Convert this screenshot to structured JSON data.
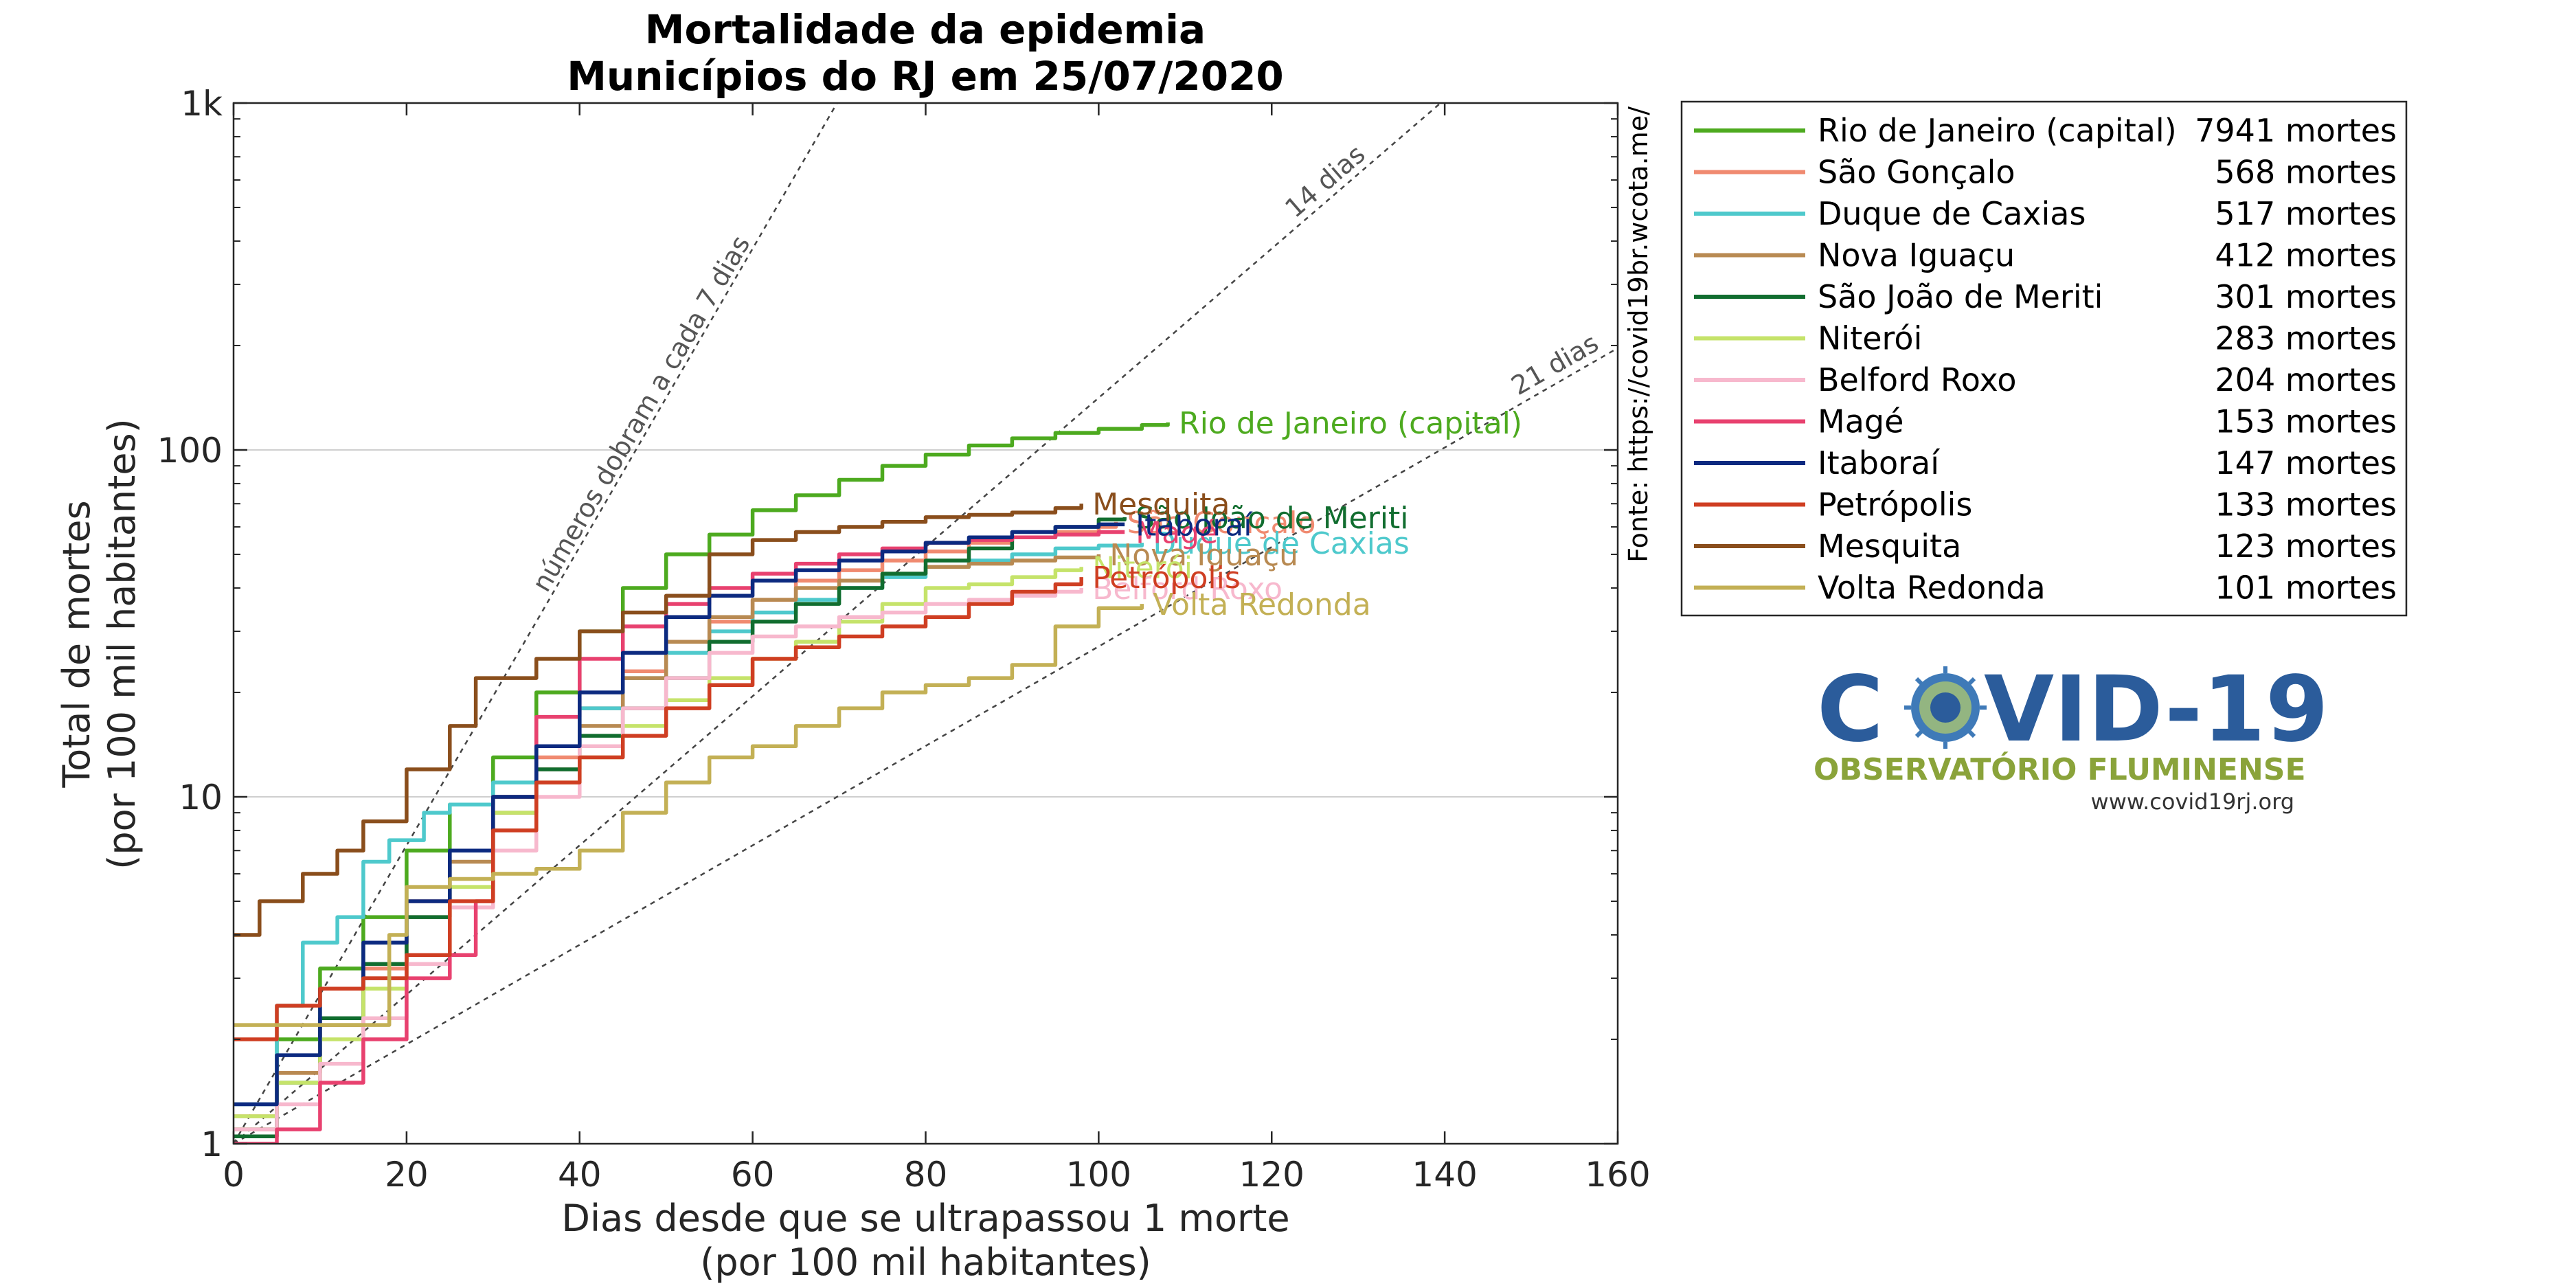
{
  "chart_data": {
    "type": "line",
    "title": [
      "Mortalidade da epidemia",
      "Municípios do RJ em 25/07/2020"
    ],
    "xlabel": [
      "Dias desde que se ultrapassou 1 morte",
      "(por 100 mil habitantes)"
    ],
    "ylabel": [
      "Total de mortes",
      "(por 100 mil habitantes)"
    ],
    "xlim": [
      0,
      160
    ],
    "ylim": [
      1,
      1000
    ],
    "yscale": "log",
    "xticks": [
      0,
      20,
      40,
      60,
      80,
      100,
      120,
      140,
      160
    ],
    "xtick_labels": [
      "0",
      "20",
      "40",
      "60",
      "80",
      "100",
      "120",
      "140",
      "160"
    ],
    "yticks": [
      1,
      10,
      100,
      1000
    ],
    "ytick_labels": [
      "1",
      "10",
      "100",
      "1k"
    ],
    "grid": "horizontal major lines",
    "legend_position": "outside-right-top",
    "source": "Fonte: https://covid19br.wcota.me/",
    "guides": [
      {
        "label": "números dobram a cada 7 dias",
        "doubling_days": 7
      },
      {
        "label": "14 dias",
        "doubling_days": 14
      },
      {
        "label": "21 dias",
        "doubling_days": 21
      }
    ],
    "series": [
      {
        "name": "Rio de Janeiro (capital)",
        "deaths": "7941 mortes",
        "color": "#4daa1f",
        "points": [
          [
            0,
            1.1
          ],
          [
            5,
            2
          ],
          [
            10,
            3.2
          ],
          [
            15,
            4.5
          ],
          [
            20,
            7
          ],
          [
            25,
            9.5
          ],
          [
            30,
            13
          ],
          [
            35,
            20
          ],
          [
            40,
            30
          ],
          [
            45,
            40
          ],
          [
            50,
            50
          ],
          [
            55,
            57
          ],
          [
            60,
            67
          ],
          [
            65,
            74
          ],
          [
            70,
            82
          ],
          [
            75,
            90
          ],
          [
            80,
            97
          ],
          [
            85,
            103
          ],
          [
            90,
            108
          ],
          [
            95,
            112
          ],
          [
            100,
            115
          ],
          [
            105,
            118
          ],
          [
            108,
            120
          ]
        ]
      },
      {
        "name": "São Gonçalo",
        "deaths": "568 mortes",
        "color": "#f08a70",
        "points": [
          [
            0,
            1.2
          ],
          [
            5,
            1.6
          ],
          [
            10,
            2.3
          ],
          [
            15,
            3.2
          ],
          [
            20,
            5
          ],
          [
            25,
            7
          ],
          [
            30,
            9
          ],
          [
            35,
            13
          ],
          [
            40,
            18
          ],
          [
            45,
            23
          ],
          [
            50,
            28
          ],
          [
            55,
            32
          ],
          [
            60,
            37
          ],
          [
            65,
            42
          ],
          [
            70,
            45
          ],
          [
            75,
            48
          ],
          [
            80,
            51
          ],
          [
            85,
            54
          ],
          [
            90,
            56
          ],
          [
            95,
            58
          ],
          [
            100,
            60
          ],
          [
            102,
            62
          ]
        ]
      },
      {
        "name": "Duque de Caxias",
        "deaths": "517 mortes",
        "color": "#4ec9cc",
        "points": [
          [
            0,
            1.3
          ],
          [
            5,
            2.5
          ],
          [
            8,
            3.8
          ],
          [
            12,
            4.5
          ],
          [
            15,
            6.5
          ],
          [
            18,
            7.5
          ],
          [
            22,
            9
          ],
          [
            25,
            9.5
          ],
          [
            30,
            11
          ],
          [
            35,
            14
          ],
          [
            40,
            18
          ],
          [
            45,
            22
          ],
          [
            50,
            26
          ],
          [
            55,
            30
          ],
          [
            60,
            34
          ],
          [
            65,
            37
          ],
          [
            70,
            40
          ],
          [
            75,
            43
          ],
          [
            80,
            46
          ],
          [
            85,
            48
          ],
          [
            90,
            50
          ],
          [
            95,
            52
          ],
          [
            100,
            53
          ],
          [
            105,
            54
          ]
        ]
      },
      {
        "name": "Nova Iguaçu",
        "deaths": "412 mortes",
        "color": "#b88a52",
        "points": [
          [
            0,
            1.1
          ],
          [
            5,
            1.6
          ],
          [
            10,
            2.2
          ],
          [
            15,
            3
          ],
          [
            20,
            4.5
          ],
          [
            25,
            6.5
          ],
          [
            30,
            9
          ],
          [
            35,
            12
          ],
          [
            40,
            16
          ],
          [
            45,
            22
          ],
          [
            50,
            28
          ],
          [
            55,
            33
          ],
          [
            60,
            37
          ],
          [
            65,
            40
          ],
          [
            70,
            42
          ],
          [
            75,
            44
          ],
          [
            80,
            46
          ],
          [
            85,
            47
          ],
          [
            90,
            48
          ],
          [
            95,
            49
          ],
          [
            100,
            50
          ]
        ]
      },
      {
        "name": "São João de Meriti",
        "deaths": "301 mortes",
        "color": "#116d2f",
        "points": [
          [
            0,
            1.05
          ],
          [
            5,
            1.5
          ],
          [
            10,
            2.3
          ],
          [
            15,
            3.3
          ],
          [
            20,
            4.5
          ],
          [
            25,
            7
          ],
          [
            30,
            10
          ],
          [
            35,
            12
          ],
          [
            40,
            15
          ],
          [
            45,
            18
          ],
          [
            50,
            22
          ],
          [
            55,
            28
          ],
          [
            60,
            32
          ],
          [
            65,
            36
          ],
          [
            70,
            40
          ],
          [
            75,
            44
          ],
          [
            80,
            48
          ],
          [
            85,
            52
          ],
          [
            90,
            56
          ],
          [
            95,
            60
          ],
          [
            100,
            63
          ],
          [
            103,
            64
          ]
        ]
      },
      {
        "name": "Niterói",
        "deaths": "283 mortes",
        "color": "#c5e36a",
        "points": [
          [
            0,
            1.2
          ],
          [
            5,
            1.5
          ],
          [
            10,
            2
          ],
          [
            15,
            2.8
          ],
          [
            20,
            3.5
          ],
          [
            25,
            5.5
          ],
          [
            30,
            9
          ],
          [
            35,
            11
          ],
          [
            40,
            13
          ],
          [
            45,
            16
          ],
          [
            50,
            19
          ],
          [
            55,
            22
          ],
          [
            60,
            25
          ],
          [
            65,
            28
          ],
          [
            70,
            32
          ],
          [
            75,
            36
          ],
          [
            80,
            40
          ],
          [
            85,
            41
          ],
          [
            90,
            43
          ],
          [
            95,
            45
          ],
          [
            98,
            46
          ]
        ]
      },
      {
        "name": "Belford Roxo",
        "deaths": "204 mortes",
        "color": "#f7b8cd",
        "points": [
          [
            0,
            1.1
          ],
          [
            5,
            1.3
          ],
          [
            10,
            1.7
          ],
          [
            15,
            2.3
          ],
          [
            20,
            3.3
          ],
          [
            25,
            4.8
          ],
          [
            30,
            7
          ],
          [
            35,
            10
          ],
          [
            40,
            14
          ],
          [
            45,
            18
          ],
          [
            50,
            22
          ],
          [
            55,
            26
          ],
          [
            60,
            29
          ],
          [
            65,
            31
          ],
          [
            70,
            33
          ],
          [
            75,
            34
          ],
          [
            80,
            36
          ],
          [
            85,
            37
          ],
          [
            90,
            38
          ],
          [
            95,
            39
          ],
          [
            98,
            40
          ]
        ]
      },
      {
        "name": "Magé",
        "deaths": "153 mortes",
        "color": "#e8416f",
        "points": [
          [
            0,
            1
          ],
          [
            3,
            1
          ],
          [
            5,
            1.1
          ],
          [
            10,
            1.5
          ],
          [
            15,
            2
          ],
          [
            20,
            3
          ],
          [
            25,
            3.5
          ],
          [
            28,
            5
          ],
          [
            30,
            10
          ],
          [
            35,
            17
          ],
          [
            40,
            25
          ],
          [
            45,
            31
          ],
          [
            50,
            36
          ],
          [
            55,
            40
          ],
          [
            60,
            44
          ],
          [
            65,
            47
          ],
          [
            70,
            50
          ],
          [
            75,
            52
          ],
          [
            80,
            54
          ],
          [
            85,
            55
          ],
          [
            90,
            56
          ],
          [
            95,
            57
          ],
          [
            100,
            58
          ],
          [
            103,
            58
          ]
        ]
      },
      {
        "name": "Itaboraí",
        "deaths": "147 mortes",
        "color": "#0c2a80",
        "points": [
          [
            0,
            1.3
          ],
          [
            5,
            1.8
          ],
          [
            10,
            2.8
          ],
          [
            15,
            3.8
          ],
          [
            20,
            5
          ],
          [
            25,
            7
          ],
          [
            30,
            10
          ],
          [
            35,
            14
          ],
          [
            40,
            20
          ],
          [
            45,
            26
          ],
          [
            50,
            33
          ],
          [
            55,
            38
          ],
          [
            60,
            42
          ],
          [
            65,
            45
          ],
          [
            70,
            48
          ],
          [
            75,
            51
          ],
          [
            80,
            54
          ],
          [
            85,
            56
          ],
          [
            90,
            58
          ],
          [
            95,
            60
          ],
          [
            100,
            61
          ],
          [
            103,
            61
          ]
        ]
      },
      {
        "name": "Petrópolis",
        "deaths": "133 mortes",
        "color": "#cf3e22",
        "points": [
          [
            0,
            2
          ],
          [
            5,
            2.5
          ],
          [
            10,
            2.8
          ],
          [
            15,
            3
          ],
          [
            20,
            3.5
          ],
          [
            25,
            5
          ],
          [
            30,
            8
          ],
          [
            35,
            11
          ],
          [
            40,
            13
          ],
          [
            45,
            15
          ],
          [
            50,
            18
          ],
          [
            55,
            21
          ],
          [
            60,
            25
          ],
          [
            65,
            27
          ],
          [
            70,
            29
          ],
          [
            75,
            31
          ],
          [
            80,
            33
          ],
          [
            85,
            36
          ],
          [
            90,
            39
          ],
          [
            95,
            41
          ],
          [
            98,
            43
          ]
        ]
      },
      {
        "name": "Mesquita",
        "deaths": "123 mortes",
        "color": "#8a4e1c",
        "points": [
          [
            0,
            4
          ],
          [
            3,
            5
          ],
          [
            8,
            6
          ],
          [
            12,
            7
          ],
          [
            15,
            8.5
          ],
          [
            20,
            12
          ],
          [
            25,
            16
          ],
          [
            28,
            22
          ],
          [
            35,
            25
          ],
          [
            40,
            30
          ],
          [
            45,
            34
          ],
          [
            50,
            38
          ],
          [
            55,
            50
          ],
          [
            60,
            55
          ],
          [
            65,
            58
          ],
          [
            70,
            60
          ],
          [
            75,
            62
          ],
          [
            80,
            64
          ],
          [
            85,
            65
          ],
          [
            90,
            66
          ],
          [
            95,
            68
          ],
          [
            98,
            70
          ]
        ]
      },
      {
        "name": "Volta Redonda",
        "deaths": "101 mortes",
        "color": "#c3b055",
        "points": [
          [
            0,
            2.2
          ],
          [
            5,
            2.2
          ],
          [
            10,
            2.2
          ],
          [
            15,
            2.2
          ],
          [
            18,
            4
          ],
          [
            20,
            5.5
          ],
          [
            25,
            5.8
          ],
          [
            30,
            6
          ],
          [
            35,
            6.2
          ],
          [
            40,
            7
          ],
          [
            45,
            9
          ],
          [
            50,
            11
          ],
          [
            55,
            13
          ],
          [
            60,
            14
          ],
          [
            65,
            16
          ],
          [
            70,
            18
          ],
          [
            75,
            20
          ],
          [
            80,
            21
          ],
          [
            85,
            22
          ],
          [
            90,
            24
          ],
          [
            95,
            31
          ],
          [
            100,
            35
          ],
          [
            105,
            36
          ]
        ]
      }
    ]
  },
  "logo": {
    "word_left": "C",
    "word_right": "VID-19",
    "subtitle": "OBSERVATÓRIO FLUMINENSE",
    "url": "www.covid19rj.org"
  }
}
